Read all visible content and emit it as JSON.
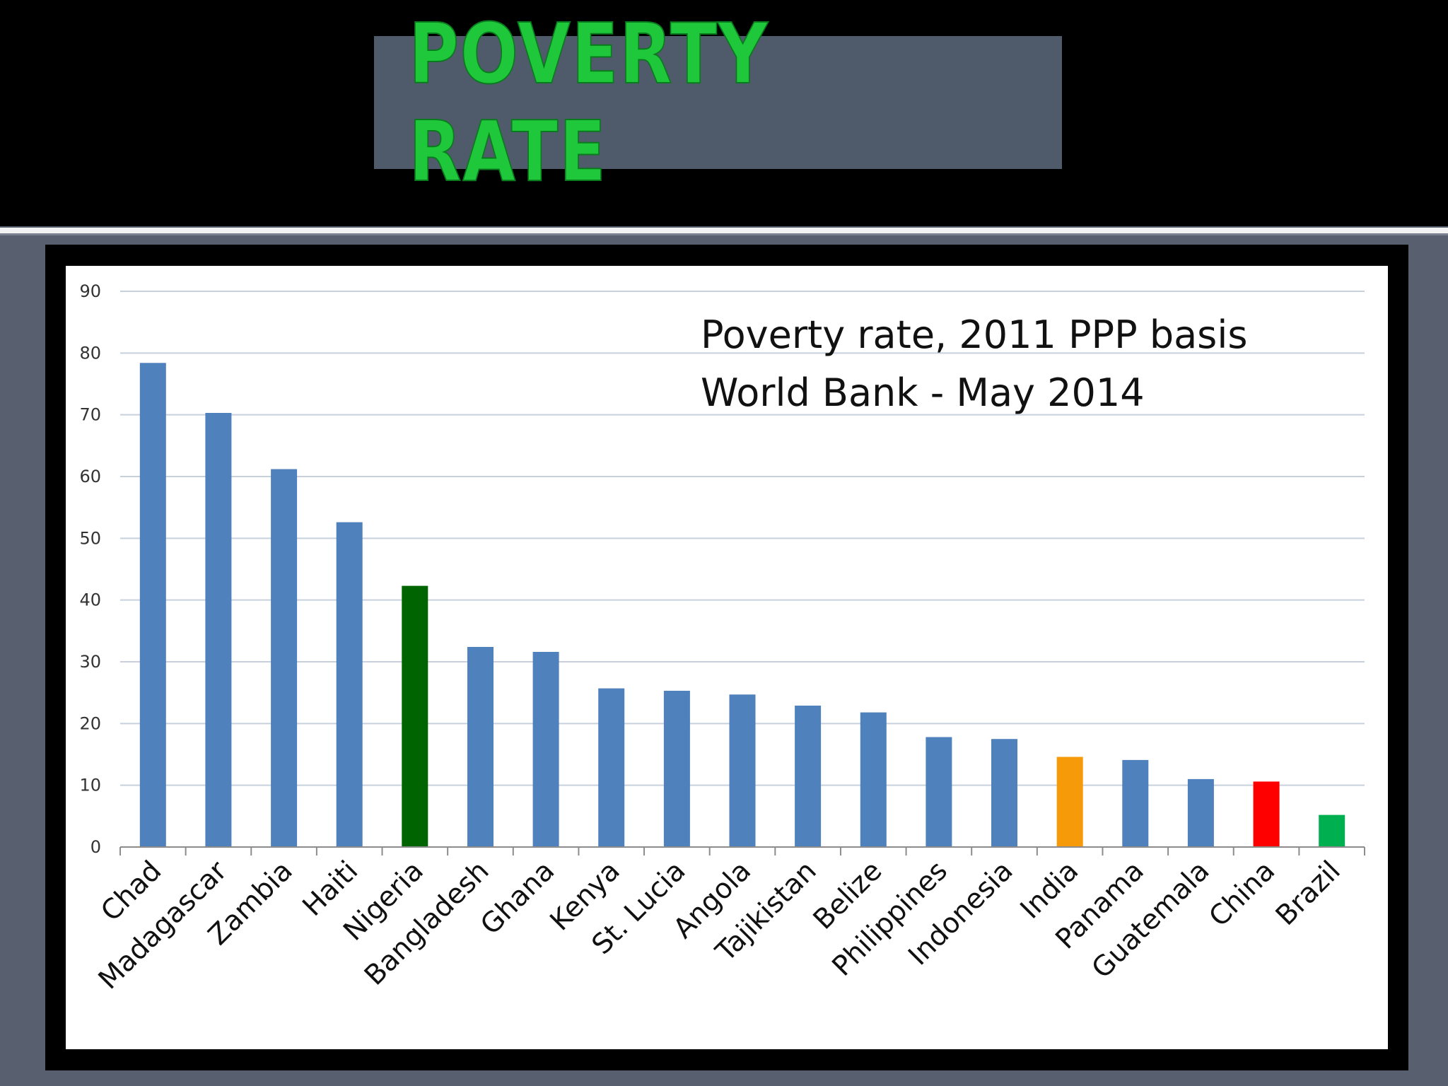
{
  "slide": {
    "title": "POVERTY RATE",
    "title_color": "#1fc83a"
  },
  "chart_data": {
    "type": "bar",
    "title_lines": [
      "Poverty rate, 2011 PPP  basis",
      "World Bank - May 2014"
    ],
    "xlabel": "",
    "ylabel": "",
    "ylim": [
      0,
      90
    ],
    "yticks": [
      0,
      10,
      20,
      30,
      40,
      50,
      60,
      70,
      80,
      90
    ],
    "grid": true,
    "legend": "none",
    "categories": [
      "Chad",
      "Madagascar",
      "Zambia",
      "Haiti",
      "Nigeria",
      "Bangladesh",
      "Ghana",
      "Kenya",
      "St. Lucia",
      "Angola",
      "Tajikistan",
      "Belize",
      "Philippines",
      "Indonesia",
      "India",
      "Panama",
      "Guatemala",
      "China",
      "Brazil"
    ],
    "values": [
      78.4,
      70.3,
      61.2,
      52.6,
      42.3,
      32.4,
      31.6,
      25.7,
      25.3,
      24.7,
      22.9,
      21.8,
      17.8,
      17.5,
      14.6,
      14.1,
      11.0,
      10.6,
      5.2
    ],
    "bar_colors": [
      "#4f81bd",
      "#4f81bd",
      "#4f81bd",
      "#4f81bd",
      "#006400",
      "#4f81bd",
      "#4f81bd",
      "#4f81bd",
      "#4f81bd",
      "#4f81bd",
      "#4f81bd",
      "#4f81bd",
      "#4f81bd",
      "#4f81bd",
      "#f79a09",
      "#4f81bd",
      "#4f81bd",
      "#ff0000",
      "#00b050"
    ]
  }
}
